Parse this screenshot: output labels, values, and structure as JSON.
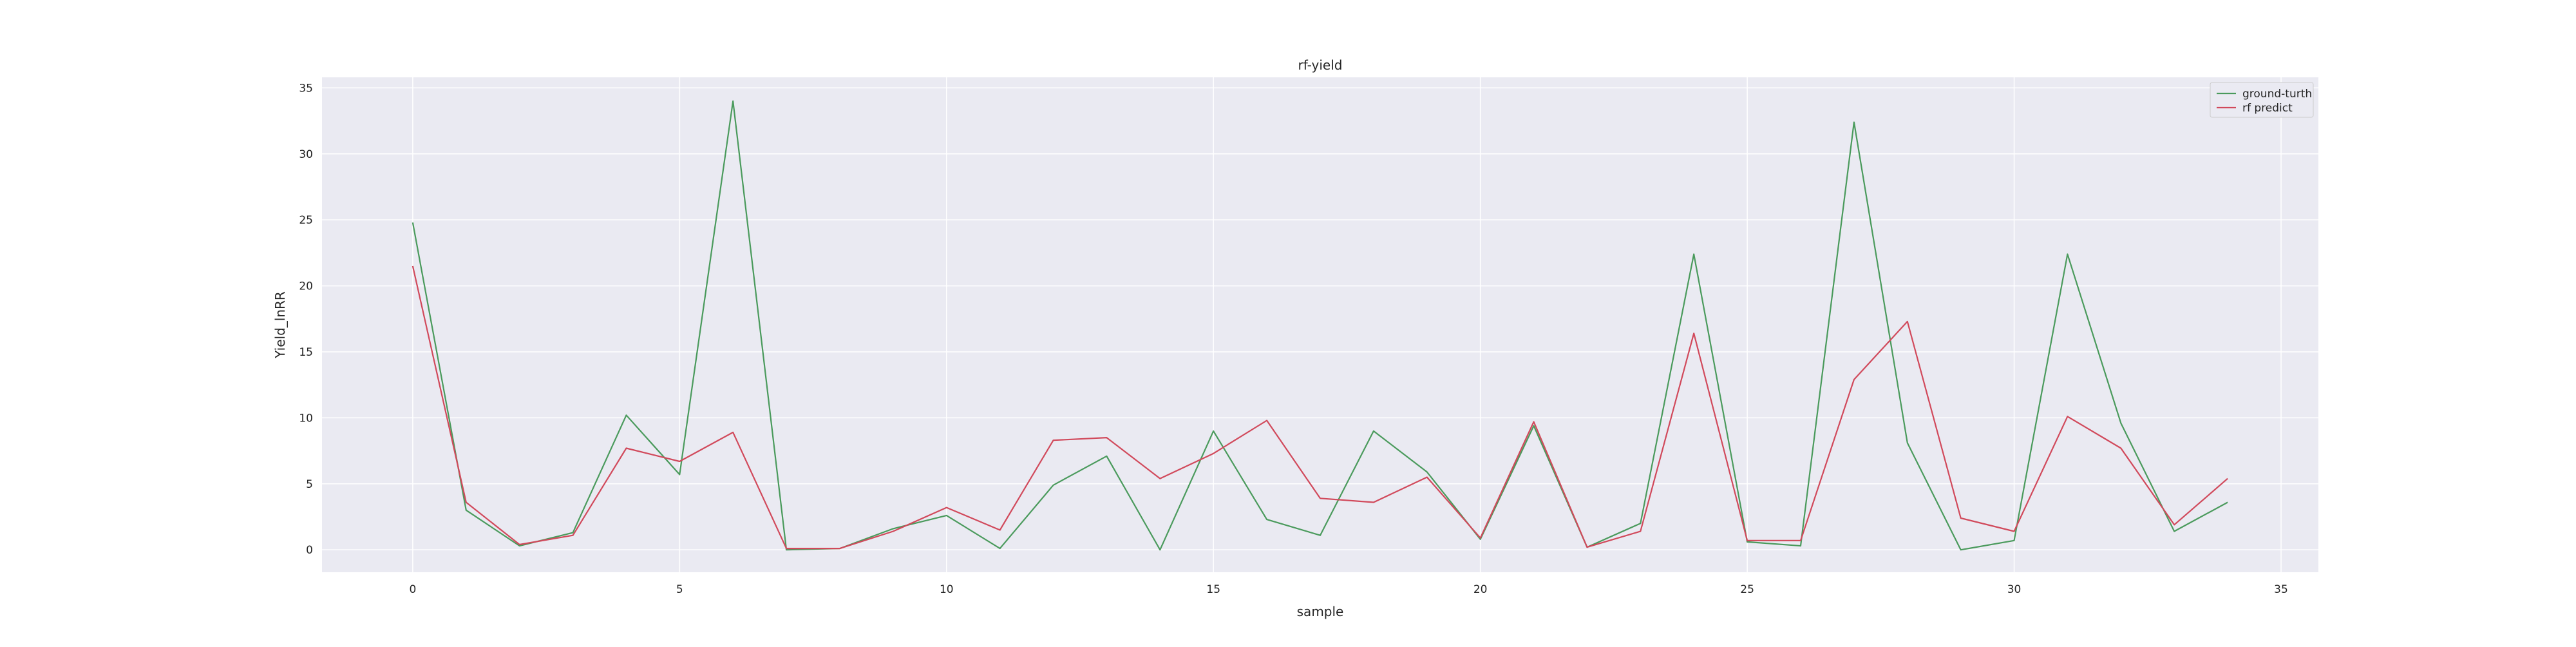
{
  "chart_data": {
    "type": "line",
    "title": "rf-yield",
    "xlabel": "sample",
    "ylabel": "Yield_lnRR",
    "xlim": [
      -1.7,
      35.7
    ],
    "ylim": [
      -1.7,
      35.8
    ],
    "xticks": [
      0,
      5,
      10,
      15,
      20,
      25,
      30,
      35
    ],
    "yticks": [
      0,
      5,
      10,
      15,
      20,
      25,
      30,
      35
    ],
    "grid": true,
    "legend_position": "top-right",
    "x": [
      0,
      1,
      2,
      3,
      4,
      5,
      6,
      7,
      8,
      9,
      10,
      11,
      12,
      13,
      14,
      15,
      16,
      17,
      18,
      19,
      20,
      21,
      22,
      23,
      24,
      25,
      26,
      27,
      28,
      29,
      30,
      31,
      32,
      33,
      34
    ],
    "series": [
      {
        "name": "ground-turth",
        "color": "#4a9a5c",
        "values": [
          24.8,
          3.0,
          0.3,
          1.3,
          10.2,
          5.7,
          34.0,
          0.0,
          0.1,
          1.6,
          2.6,
          0.1,
          4.9,
          7.1,
          0.0,
          9.0,
          2.3,
          1.1,
          9.0,
          5.9,
          0.8,
          9.4,
          0.2,
          2.0,
          22.4,
          0.6,
          0.3,
          32.4,
          8.1,
          0.0,
          0.7,
          22.4,
          9.6,
          1.4,
          3.6
        ]
      },
      {
        "name": "rf predict",
        "color": "#d1495b",
        "values": [
          21.5,
          3.6,
          0.4,
          1.1,
          7.7,
          6.7,
          8.9,
          0.1,
          0.1,
          1.4,
          3.2,
          1.5,
          8.3,
          8.5,
          5.4,
          7.3,
          9.8,
          3.9,
          3.6,
          5.5,
          0.9,
          9.7,
          0.2,
          1.4,
          16.4,
          0.7,
          0.7,
          12.9,
          17.3,
          2.4,
          1.4,
          10.1,
          7.7,
          1.9,
          5.4
        ]
      }
    ]
  },
  "style": {
    "plot_bg": "#eaeaf2",
    "grid_color": "#ffffff",
    "text_color": "#262626"
  }
}
